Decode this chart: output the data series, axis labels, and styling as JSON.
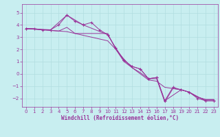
{
  "xlabel": "Windchill (Refroidissement éolien,°C)",
  "bg_color": "#c8eef0",
  "line_color": "#993399",
  "grid_color": "#b0dde0",
  "xlim": [
    -0.5,
    23.5
  ],
  "ylim": [
    -2.7,
    5.7
  ],
  "yticks": [
    -2,
    -1,
    0,
    1,
    2,
    3,
    4,
    5
  ],
  "xticks": [
    0,
    1,
    2,
    3,
    4,
    5,
    6,
    7,
    8,
    9,
    10,
    11,
    12,
    13,
    14,
    15,
    16,
    17,
    18,
    19,
    20,
    21,
    22,
    23
  ],
  "series1_x": [
    0,
    1,
    2,
    3,
    4,
    5,
    6,
    7,
    8,
    9,
    10,
    11,
    12,
    13,
    14,
    15,
    16,
    17,
    18,
    19,
    20,
    21,
    22,
    23
  ],
  "series1_y": [
    3.7,
    3.7,
    3.6,
    3.6,
    4.0,
    4.8,
    4.3,
    4.0,
    4.2,
    3.6,
    3.2,
    2.1,
    1.1,
    0.6,
    0.4,
    -0.4,
    -0.3,
    -2.2,
    -1.1,
    -1.3,
    -1.5,
    -2.0,
    -2.2,
    -2.2
  ],
  "series2_x": [
    0,
    1,
    2,
    3,
    4,
    5,
    6,
    7,
    8,
    9,
    10,
    11,
    12,
    13,
    14,
    15,
    16,
    17,
    18,
    19,
    20,
    21,
    22,
    23
  ],
  "series2_y": [
    3.7,
    3.65,
    3.6,
    3.55,
    3.5,
    3.45,
    3.3,
    3.15,
    3.0,
    2.85,
    2.7,
    2.0,
    1.2,
    0.5,
    0.0,
    -0.5,
    -0.6,
    -1.1,
    -1.2,
    -1.3,
    -1.5,
    -1.9,
    -2.1,
    -2.1
  ],
  "series3_x": [
    0,
    1,
    2,
    3,
    4,
    5,
    6,
    7,
    8,
    9,
    10,
    11,
    12,
    13,
    14,
    15,
    16,
    17,
    18,
    19,
    20,
    21,
    22,
    23
  ],
  "series3_y": [
    3.7,
    3.65,
    3.6,
    3.55,
    3.5,
    3.8,
    3.3,
    3.3,
    3.3,
    3.3,
    3.3,
    2.0,
    1.0,
    0.5,
    0.1,
    -0.4,
    -0.4,
    -2.3,
    -1.2,
    -1.3,
    -1.5,
    -1.9,
    -2.1,
    -2.1
  ],
  "series4_x": [
    0,
    3,
    5,
    7,
    10,
    11,
    12,
    13,
    14,
    15,
    16,
    17,
    19,
    20,
    22,
    23
  ],
  "series4_y": [
    3.7,
    3.6,
    4.8,
    4.0,
    3.2,
    2.1,
    1.1,
    0.6,
    0.4,
    -0.4,
    -0.3,
    -2.2,
    -1.3,
    -1.5,
    -2.2,
    -2.2
  ]
}
